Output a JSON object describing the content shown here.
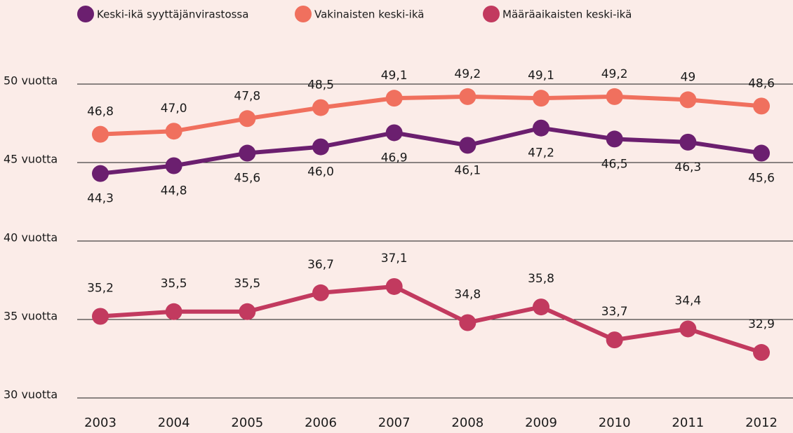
{
  "chart_data": {
    "type": "line",
    "categories": [
      "2003",
      "2004",
      "2005",
      "2006",
      "2007",
      "2008",
      "2009",
      "2010",
      "2011",
      "2012"
    ],
    "series": [
      {
        "name": "Keski-ikä syyttäjänvirastossa",
        "color": "#6b1f6f",
        "values": [
          44.3,
          44.8,
          45.6,
          46.0,
          46.9,
          46.1,
          47.2,
          46.5,
          46.3,
          45.6
        ],
        "value_labels": [
          "44,3",
          "44,8",
          "45,6",
          "46,0",
          "46,9",
          "46,1",
          "47,2",
          "46,5",
          "46,3",
          "45,6"
        ]
      },
      {
        "name": "Vakinaisten keski-ikä",
        "color": "#f0705e",
        "values": [
          46.8,
          47.0,
          47.8,
          48.5,
          49.1,
          49.2,
          49.1,
          49.2,
          49,
          48.6
        ],
        "value_labels": [
          "46,8",
          "47,0",
          "47,8",
          "48,5",
          "49,1",
          "49,2",
          "49,1",
          "49,2",
          "49",
          "48,6"
        ]
      },
      {
        "name": "Määräaikaisten keski-ikä",
        "color": "#c23a5f",
        "values": [
          35.2,
          35.5,
          35.5,
          36.7,
          37.1,
          34.8,
          35.8,
          33.7,
          34.4,
          32.9
        ],
        "value_labels": [
          "35,2",
          "35,5",
          "35,5",
          "36,7",
          "37,1",
          "34,8",
          "35,8",
          "33,7",
          "34,4",
          "32,9"
        ]
      }
    ],
    "ylim": [
      30,
      50
    ],
    "yticks": [
      {
        "value": 30,
        "label": "30 vuotta"
      },
      {
        "value": 35,
        "label": "35 vuotta"
      },
      {
        "value": 40,
        "label": "40 vuotta"
      },
      {
        "value": 45,
        "label": "45 vuotta"
      },
      {
        "value": 50,
        "label": "50 vuotta"
      }
    ],
    "grid": true,
    "legend": "top"
  }
}
